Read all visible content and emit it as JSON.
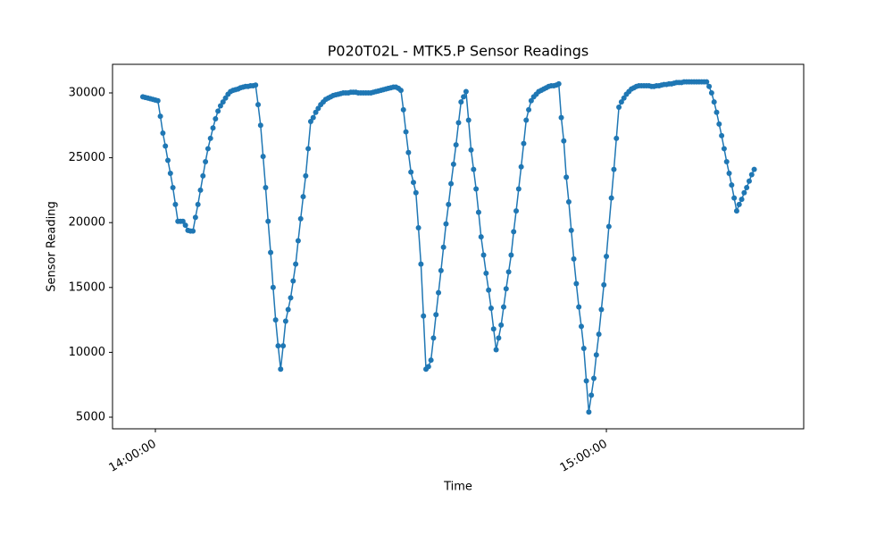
{
  "chart_data": {
    "type": "line",
    "title": "P020T02L - MTK5.P Sensor Readings",
    "x_label": "Time",
    "y_label": "Sensor Reading",
    "color": "#1f77b4",
    "xlim": [
      "13:54:18",
      "15:26:15"
    ],
    "xticks": [
      "14:00:00",
      "15:00:00"
    ],
    "ylim": [
      4105,
      32204
    ],
    "yticks": [
      5000,
      10000,
      15000,
      20000,
      25000,
      30000
    ],
    "x": [
      "13:58:20",
      "13:58:40",
      "13:59:00",
      "13:59:20",
      "13:59:40",
      "14:00:00",
      "14:00:20",
      "14:00:40",
      "14:01:00",
      "14:01:20",
      "14:01:40",
      "14:02:00",
      "14:02:20",
      "14:02:40",
      "14:03:00",
      "14:03:20",
      "14:03:40",
      "14:04:00",
      "14:04:20",
      "14:04:40",
      "14:05:00",
      "14:05:20",
      "14:05:40",
      "14:06:00",
      "14:06:20",
      "14:06:40",
      "14:07:00",
      "14:07:20",
      "14:07:40",
      "14:08:00",
      "14:08:20",
      "14:08:40",
      "14:09:00",
      "14:09:20",
      "14:09:40",
      "14:10:00",
      "14:10:20",
      "14:10:40",
      "14:11:00",
      "14:11:20",
      "14:11:40",
      "14:12:00",
      "14:12:20",
      "14:12:40",
      "14:13:00",
      "14:13:20",
      "14:13:40",
      "14:14:00",
      "14:14:20",
      "14:14:40",
      "14:15:00",
      "14:15:20",
      "14:15:40",
      "14:16:00",
      "14:16:20",
      "14:16:40",
      "14:17:00",
      "14:17:20",
      "14:17:40",
      "14:18:00",
      "14:18:20",
      "14:18:40",
      "14:19:00",
      "14:19:20",
      "14:19:40",
      "14:20:00",
      "14:20:20",
      "14:20:40",
      "14:21:00",
      "14:21:20",
      "14:21:40",
      "14:22:00",
      "14:22:20",
      "14:22:40",
      "14:23:00",
      "14:23:20",
      "14:23:40",
      "14:24:00",
      "14:24:20",
      "14:24:40",
      "14:25:00",
      "14:25:20",
      "14:25:40",
      "14:26:00",
      "14:26:20",
      "14:26:40",
      "14:27:00",
      "14:27:20",
      "14:27:40",
      "14:28:00",
      "14:28:20",
      "14:28:40",
      "14:29:00",
      "14:29:20",
      "14:29:40",
      "14:30:00",
      "14:30:20",
      "14:30:40",
      "14:31:00",
      "14:31:20",
      "14:31:40",
      "14:32:00",
      "14:32:20",
      "14:32:40",
      "14:33:00",
      "14:33:20",
      "14:33:40",
      "14:34:00",
      "14:34:20",
      "14:34:40",
      "14:35:00",
      "14:35:20",
      "14:35:40",
      "14:36:00",
      "14:36:20",
      "14:36:40",
      "14:37:00",
      "14:37:20",
      "14:37:40",
      "14:38:00",
      "14:38:20",
      "14:38:40",
      "14:39:00",
      "14:39:20",
      "14:39:40",
      "14:40:00",
      "14:40:20",
      "14:40:40",
      "14:41:00",
      "14:41:20",
      "14:41:40",
      "14:42:00",
      "14:42:20",
      "14:42:40",
      "14:43:00",
      "14:43:20",
      "14:43:40",
      "14:44:00",
      "14:44:20",
      "14:44:40",
      "14:45:00",
      "14:45:20",
      "14:45:40",
      "14:46:00",
      "14:46:20",
      "14:46:40",
      "14:47:00",
      "14:47:20",
      "14:47:40",
      "14:48:00",
      "14:48:20",
      "14:48:40",
      "14:49:00",
      "14:49:20",
      "14:49:40",
      "14:50:00",
      "14:50:20",
      "14:50:40",
      "14:51:00",
      "14:51:20",
      "14:51:40",
      "14:52:00",
      "14:52:20",
      "14:52:40",
      "14:53:00",
      "14:53:20",
      "14:53:40",
      "14:54:00",
      "14:54:20",
      "14:54:40",
      "14:55:00",
      "14:55:20",
      "14:55:40",
      "14:56:00",
      "14:56:20",
      "14:56:40",
      "14:57:00",
      "14:57:20",
      "14:57:40",
      "14:58:00",
      "14:58:20",
      "14:58:40",
      "14:59:00",
      "14:59:20",
      "14:59:40",
      "15:00:00",
      "15:00:20",
      "15:00:40",
      "15:01:00",
      "15:01:20",
      "15:01:40",
      "15:02:00",
      "15:02:20",
      "15:02:40",
      "15:03:00",
      "15:03:20",
      "15:03:40",
      "15:04:00",
      "15:04:20",
      "15:04:40",
      "15:05:00",
      "15:05:20",
      "15:05:40",
      "15:06:00",
      "15:06:20",
      "15:06:40",
      "15:07:00",
      "15:07:20",
      "15:07:40",
      "15:08:00",
      "15:08:20",
      "15:08:40",
      "15:09:00",
      "15:09:20",
      "15:09:40",
      "15:10:00",
      "15:10:20",
      "15:10:40",
      "15:11:00",
      "15:11:20",
      "15:11:40",
      "15:12:00",
      "15:12:20",
      "15:12:40",
      "15:13:00",
      "15:13:20",
      "15:13:40",
      "15:14:00",
      "15:14:20",
      "15:14:40",
      "15:15:00",
      "15:15:20",
      "15:15:40",
      "15:16:00",
      "15:16:20",
      "15:16:40",
      "15:17:00",
      "15:17:20",
      "15:17:40",
      "15:18:00",
      "15:18:20",
      "15:18:40",
      "15:19:00",
      "15:19:20",
      "15:19:40"
    ],
    "values": [
      29700,
      29650,
      29600,
      29550,
      29500,
      29450,
      29400,
      28200,
      26900,
      25900,
      24800,
      23800,
      22700,
      21400,
      20100,
      20100,
      20100,
      19800,
      19400,
      19350,
      19350,
      20400,
      21400,
      22500,
      23600,
      24700,
      25700,
      26500,
      27300,
      28000,
      28600,
      29000,
      29300,
      29600,
      29900,
      30100,
      30200,
      30250,
      30300,
      30400,
      30450,
      30500,
      30500,
      30550,
      30550,
      30600,
      29100,
      27500,
      25100,
      22700,
      20100,
      17700,
      15000,
      12500,
      10500,
      8700,
      10500,
      12400,
      13300,
      14200,
      15500,
      16800,
      18600,
      20300,
      22000,
      23600,
      25700,
      27800,
      28100,
      28500,
      28800,
      29100,
      29300,
      29500,
      29600,
      29700,
      29800,
      29850,
      29900,
      29950,
      30000,
      30000,
      30000,
      30050,
      30050,
      30050,
      30000,
      30000,
      30000,
      30000,
      30000,
      30000,
      30050,
      30100,
      30150,
      30200,
      30250,
      30300,
      30350,
      30400,
      30450,
      30450,
      30350,
      30200,
      28700,
      27000,
      25400,
      23900,
      23100,
      22300,
      19600,
      16800,
      12800,
      8700,
      8900,
      9400,
      11100,
      12900,
      14600,
      16300,
      18100,
      19900,
      21400,
      23000,
      24500,
      26000,
      27700,
      29300,
      29700,
      30100,
      27900,
      25600,
      24100,
      22600,
      20800,
      18900,
      17500,
      16100,
      14800,
      13400,
      11800,
      10200,
      11100,
      12100,
      13500,
      14900,
      16200,
      17500,
      19300,
      20900,
      22600,
      24300,
      26100,
      27900,
      28700,
      29400,
      29700,
      29900,
      30100,
      30200,
      30300,
      30400,
      30500,
      30550,
      30550,
      30600,
      30700,
      28100,
      26300,
      23500,
      21600,
      19400,
      17200,
      15300,
      13500,
      12000,
      10300,
      7800,
      5400,
      6700,
      8000,
      9800,
      11400,
      13300,
      15200,
      17400,
      19700,
      21900,
      24100,
      26500,
      28900,
      29300,
      29600,
      29900,
      30100,
      30300,
      30400,
      30500,
      30550,
      30550,
      30550,
      30550,
      30550,
      30500,
      30500,
      30550,
      30550,
      30600,
      30650,
      30650,
      30700,
      30700,
      30750,
      30800,
      30800,
      30800,
      30850,
      30850,
      30850,
      30850,
      30850,
      30850,
      30850,
      30850,
      30850,
      30850,
      30500,
      30000,
      29300,
      28500,
      27600,
      26700,
      25700,
      24700,
      23800,
      22900,
      21900,
      20900,
      21400,
      21800,
      22300,
      22700,
      23200,
      23700,
      24100
    ]
  }
}
